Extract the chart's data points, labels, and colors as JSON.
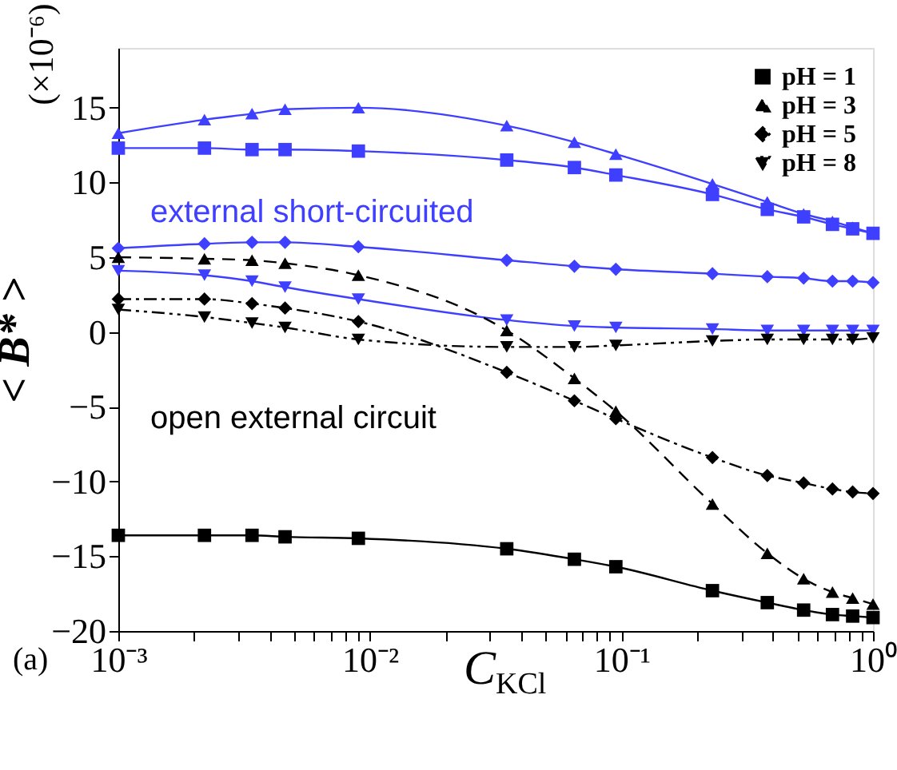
{
  "chart_data": {
    "type": "line",
    "xlabel": "C$_{KCl}$",
    "ylabel": "< B* >",
    "x": [
      0.001,
      0.0022,
      0.0034,
      0.0046,
      0.009,
      0.035,
      0.065,
      0.095,
      0.23,
      0.38,
      0.53,
      0.69,
      0.83,
      1.0
    ],
    "series": [
      {
        "name": "pH = 1",
        "color": "#000000",
        "marker": "square",
        "line_style": "solid",
        "values": [
          -13.6,
          -13.6,
          -13.6,
          -13.7,
          -13.8,
          -14.5,
          -15.2,
          -15.7,
          -17.3,
          -18.1,
          -18.6,
          -18.9,
          -19.0,
          -19.1
        ]
      },
      {
        "name": "pH = 3",
        "color": "#000000",
        "marker": "triangle",
        "line_style": "dashed",
        "values": [
          5.0,
          4.9,
          4.8,
          4.6,
          3.8,
          0.1,
          -3.1,
          -5.3,
          -11.5,
          -14.8,
          -16.5,
          -17.4,
          -17.8,
          -18.2
        ]
      },
      {
        "name": "pH = 5",
        "color": "#000000",
        "marker": "diamond",
        "line_style": "dashdot",
        "values": [
          2.2,
          2.2,
          1.9,
          1.6,
          0.7,
          -2.7,
          -4.6,
          -5.8,
          -8.4,
          -9.6,
          -10.1,
          -10.5,
          -10.7,
          -10.8
        ]
      },
      {
        "name": "pH = 8",
        "color": "#000000",
        "marker": "triangle-down",
        "line_style": "dashdotdot",
        "values": [
          1.5,
          1.0,
          0.6,
          0.3,
          -0.5,
          -1.0,
          -1.0,
          -0.9,
          -0.6,
          -0.5,
          -0.5,
          -0.5,
          -0.5,
          -0.4
        ]
      },
      {
        "color": "#3f3fff",
        "marker": "square",
        "line_style": "solid",
        "values": [
          12.3,
          12.3,
          12.2,
          12.2,
          12.1,
          11.5,
          11.0,
          10.5,
          9.2,
          8.2,
          7.7,
          7.2,
          6.9,
          6.6
        ]
      },
      {
        "color": "#3f3fff",
        "marker": "triangle",
        "line_style": "solid",
        "values": [
          13.3,
          14.2,
          14.6,
          14.9,
          15.0,
          13.8,
          12.7,
          11.9,
          9.9,
          8.7,
          7.9,
          7.4,
          7.0,
          6.6
        ]
      },
      {
        "color": "#3f3fff",
        "marker": "diamond",
        "line_style": "solid",
        "values": [
          5.6,
          5.9,
          6.0,
          6.0,
          5.7,
          4.8,
          4.4,
          4.2,
          3.9,
          3.7,
          3.6,
          3.4,
          3.4,
          3.3
        ]
      },
      {
        "color": "#3f3fff",
        "marker": "triangle-down",
        "line_style": "solid",
        "values": [
          4.1,
          3.8,
          3.4,
          3.0,
          2.2,
          0.8,
          0.4,
          0.3,
          0.2,
          0.1,
          0.1,
          0.1,
          0.1,
          0.1
        ]
      }
    ],
    "xlim": [
      0.001,
      1
    ],
    "ylim": [
      -20,
      19
    ],
    "log": "x",
    "xticks": [
      {
        "value": 0.001,
        "label": "10⁻³"
      },
      {
        "value": 0.002,
        "label": null
      },
      {
        "value": 0.003,
        "label": null
      },
      {
        "value": 0.004,
        "label": null
      },
      {
        "value": 0.005,
        "label": null
      },
      {
        "value": 0.006,
        "label": null
      },
      {
        "value": 0.007,
        "label": null
      },
      {
        "value": 0.008,
        "label": null
      },
      {
        "value": 0.009,
        "label": null
      },
      {
        "value": 0.01,
        "label": "10⁻²"
      },
      {
        "value": 0.02,
        "label": null
      },
      {
        "value": 0.03,
        "label": null
      },
      {
        "value": 0.04,
        "label": null
      },
      {
        "value": 0.05,
        "label": null
      },
      {
        "value": 0.06,
        "label": null
      },
      {
        "value": 0.07,
        "label": null
      },
      {
        "value": 0.08,
        "label": null
      },
      {
        "value": 0.09,
        "label": null
      },
      {
        "value": 0.1,
        "label": "10⁻¹"
      },
      {
        "value": 0.2,
        "label": null
      },
      {
        "value": 0.3,
        "label": null
      },
      {
        "value": 0.4,
        "label": null
      },
      {
        "value": 0.5,
        "label": null
      },
      {
        "value": 0.6,
        "label": null
      },
      {
        "value": 0.7,
        "label": null
      },
      {
        "value": 0.8,
        "label": null
      },
      {
        "value": 0.9,
        "label": null
      },
      {
        "value": 1,
        "label": "10⁰"
      }
    ],
    "yticks": [
      -20,
      -15,
      -10,
      -5,
      0,
      5,
      10,
      15
    ],
    "grid": false,
    "legend": "top right",
    "annotations": [
      "external short-circuited",
      "open external circuit",
      "(×10⁻⁶)",
      "(a)"
    ]
  }
}
